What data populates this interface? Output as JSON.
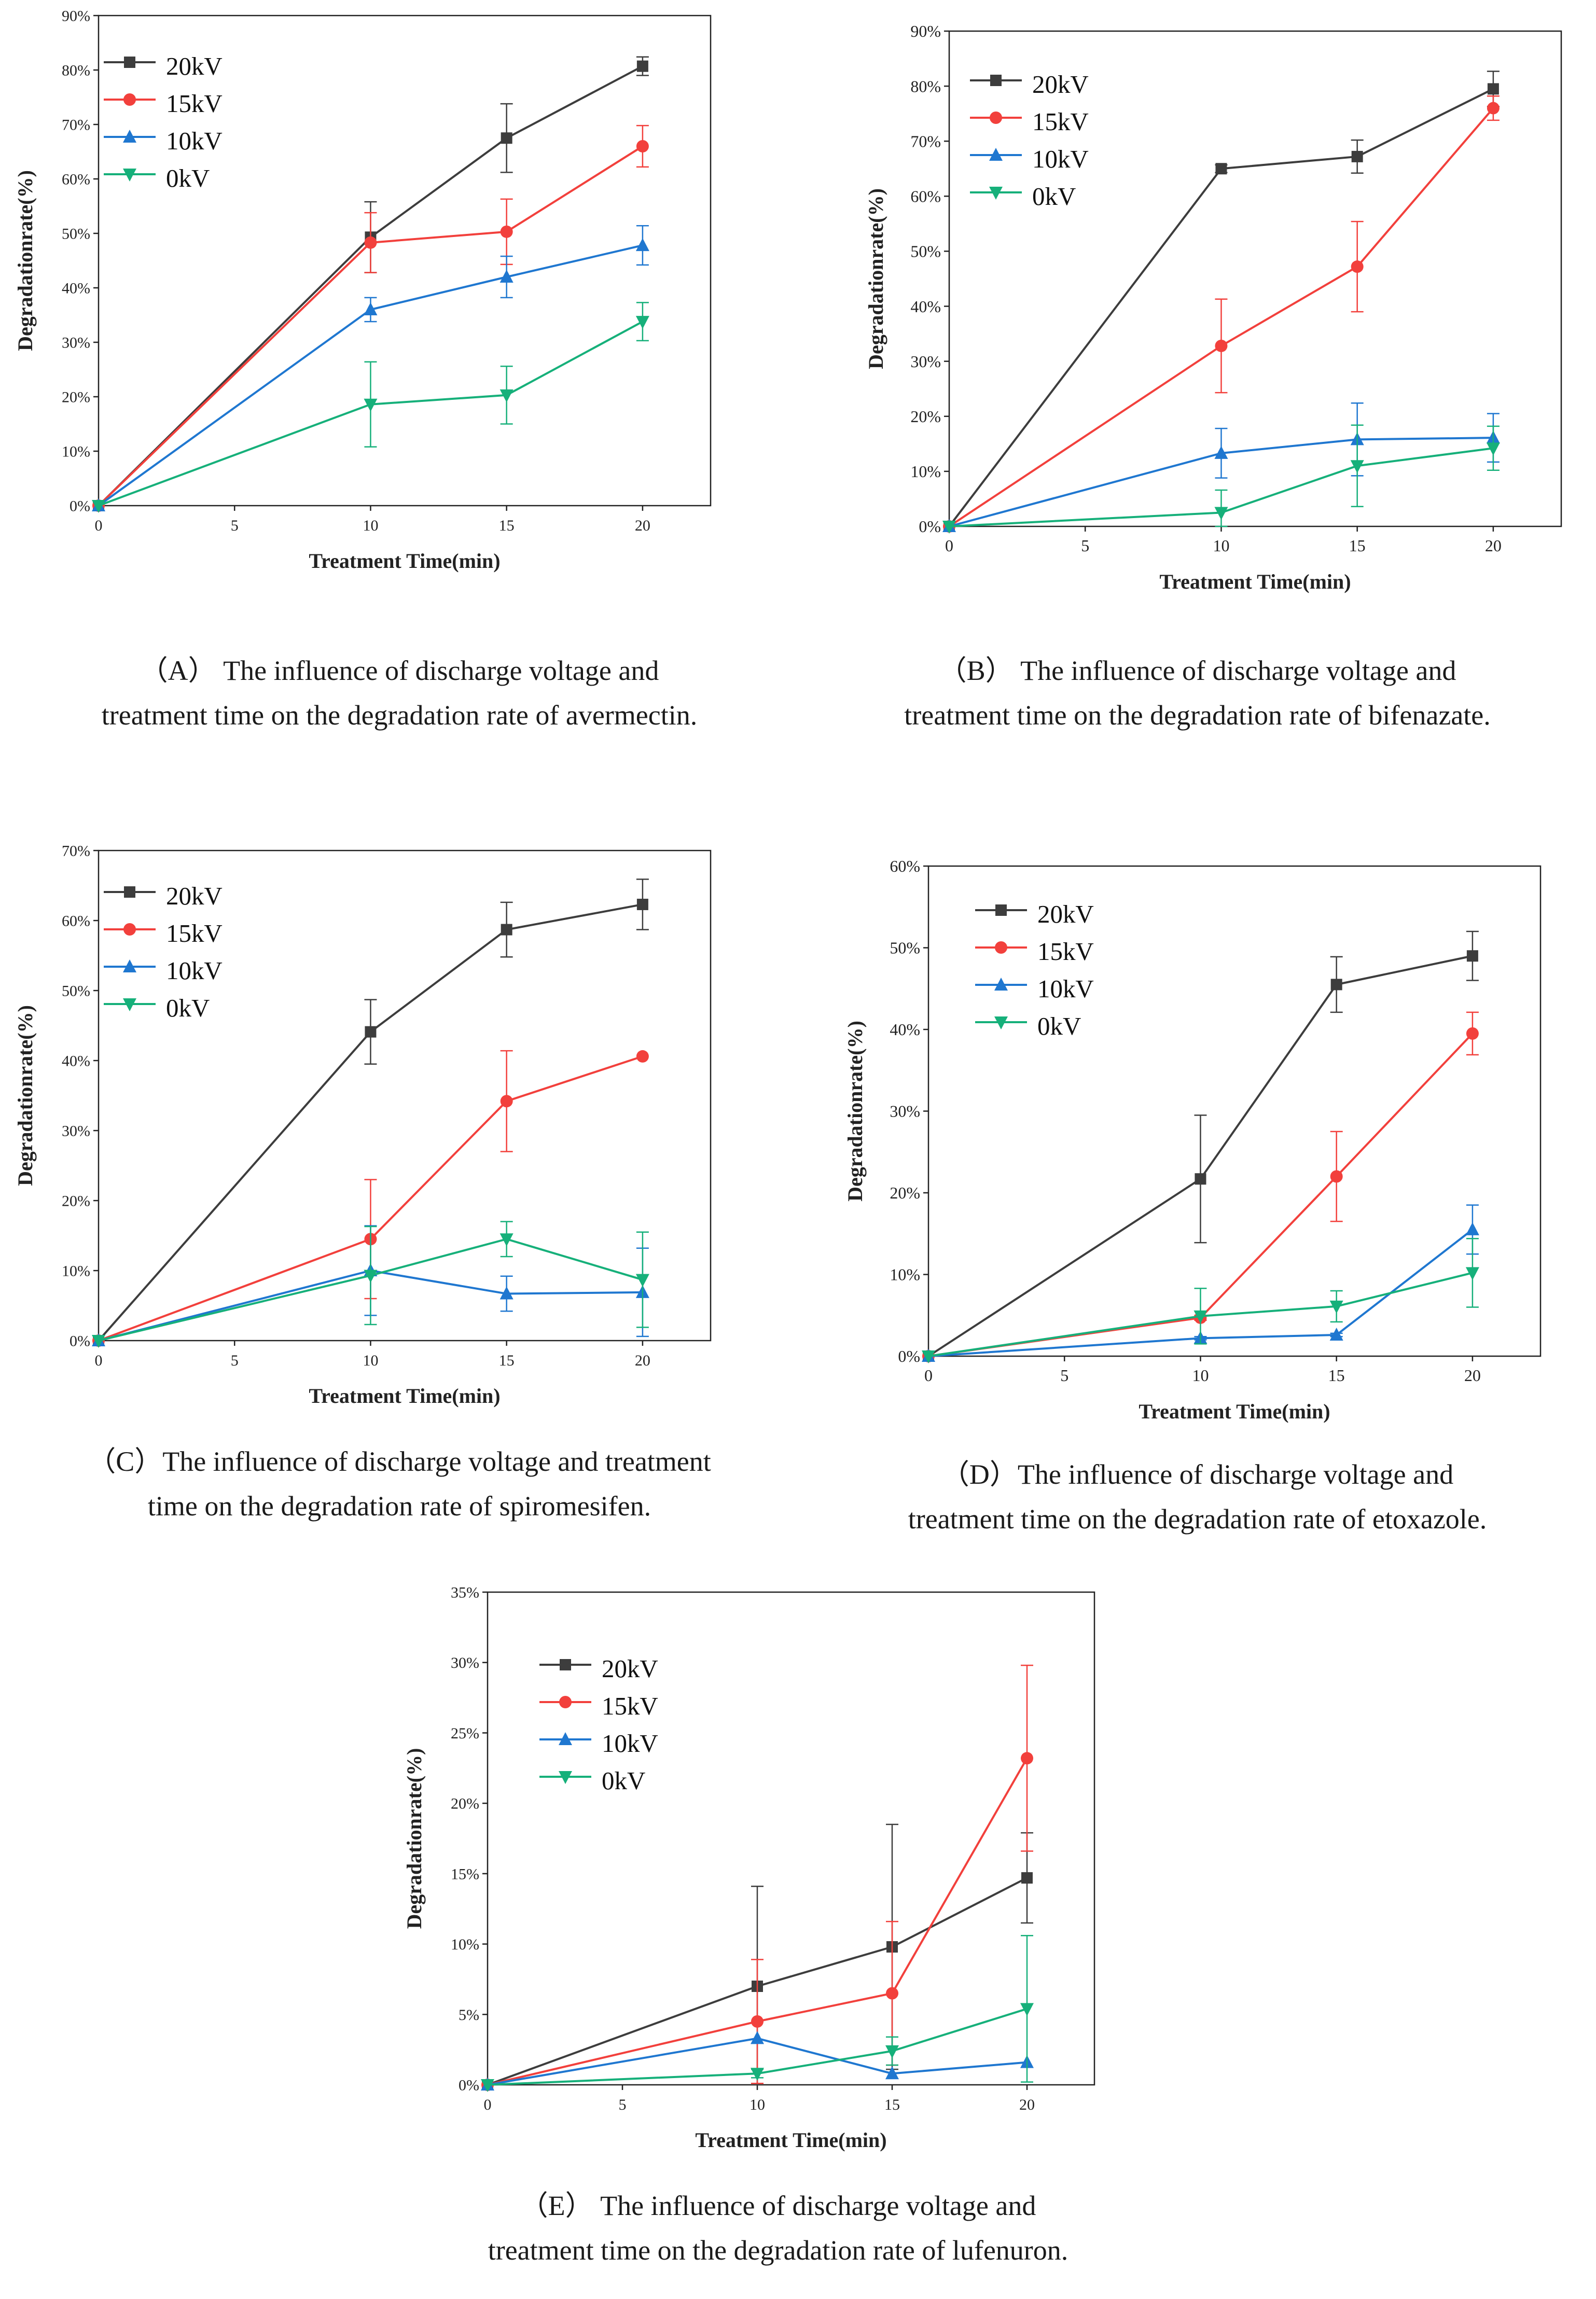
{
  "chart_data": [
    {
      "id": "A",
      "type": "line",
      "xlabel": "Treatment Time(min)",
      "ylabel": "Degradationrate(%)",
      "xlim": [
        0,
        22.5
      ],
      "ylim": [
        0,
        90
      ],
      "xticks": [
        0,
        5,
        10,
        15,
        20
      ],
      "yticks": [
        0,
        10,
        20,
        30,
        40,
        50,
        60,
        70,
        80,
        90
      ],
      "x": [
        0,
        10,
        15,
        20
      ],
      "series": [
        {
          "name": "20kV",
          "color": "#3d3d3d",
          "marker": "square",
          "values": [
            0,
            49.3,
            67.5,
            80.7
          ],
          "errors": [
            0,
            6.5,
            6.3,
            1.7
          ]
        },
        {
          "name": "15kV",
          "color": "#f2403c",
          "marker": "circle",
          "values": [
            0,
            48.3,
            50.3,
            66.0
          ],
          "errors": [
            0,
            5.5,
            6.0,
            3.8
          ]
        },
        {
          "name": "10kV",
          "color": "#1f77d0",
          "marker": "triangle-up",
          "values": [
            0,
            36.0,
            42.0,
            47.8
          ],
          "errors": [
            0,
            2.2,
            3.8,
            3.6
          ]
        },
        {
          "name": "0kV",
          "color": "#16b07a",
          "marker": "triangle-down",
          "values": [
            0,
            18.6,
            20.3,
            33.8
          ],
          "errors": [
            0,
            7.8,
            5.3,
            3.5
          ]
        }
      ],
      "caption_lines": [
        "（A） The influence of discharge voltage and",
        "treatment time on the degradation rate of avermectin."
      ]
    },
    {
      "id": "B",
      "type": "line",
      "xlabel": "Treatment Time(min)",
      "ylabel": "Degradationrate(%)",
      "xlim": [
        0,
        22.5
      ],
      "ylim": [
        0,
        90
      ],
      "xticks": [
        0,
        5,
        10,
        15,
        20
      ],
      "yticks": [
        0,
        10,
        20,
        30,
        40,
        50,
        60,
        70,
        80,
        90
      ],
      "x": [
        0,
        10,
        15,
        20
      ],
      "series": [
        {
          "name": "20kV",
          "color": "#3d3d3d",
          "marker": "square",
          "values": [
            0,
            65.0,
            67.2,
            79.5
          ],
          "errors": [
            0,
            0.7,
            3.0,
            3.2
          ]
        },
        {
          "name": "15kV",
          "color": "#f2403c",
          "marker": "circle",
          "values": [
            0,
            32.8,
            47.2,
            76.0
          ],
          "errors": [
            0,
            8.5,
            8.2,
            2.2
          ]
        },
        {
          "name": "10kV",
          "color": "#1f77d0",
          "marker": "triangle-up",
          "values": [
            0,
            13.3,
            15.8,
            16.1
          ],
          "errors": [
            0,
            4.5,
            6.6,
            4.4
          ]
        },
        {
          "name": "0kV",
          "color": "#16b07a",
          "marker": "triangle-down",
          "values": [
            0,
            2.5,
            11.0,
            14.2
          ],
          "errors": [
            0,
            4.1,
            7.4,
            4.0
          ]
        }
      ],
      "caption_lines": [
        "（B） The influence of discharge voltage and",
        "treatment time on the degradation rate of bifenazate."
      ]
    },
    {
      "id": "C",
      "type": "line",
      "xlabel": "Treatment Time(min)",
      "ylabel": "Degradationrate(%)",
      "xlim": [
        0,
        22.5
      ],
      "ylim": [
        0,
        70
      ],
      "xticks": [
        0,
        5,
        10,
        15,
        20
      ],
      "yticks": [
        0,
        10,
        20,
        30,
        40,
        50,
        60,
        70
      ],
      "x": [
        0,
        10,
        15,
        20
      ],
      "series": [
        {
          "name": "20kV",
          "color": "#3d3d3d",
          "marker": "square",
          "values": [
            0,
            44.1,
            58.7,
            62.3
          ],
          "errors": [
            0,
            4.6,
            3.9,
            3.6
          ]
        },
        {
          "name": "15kV",
          "color": "#f2403c",
          "marker": "circle",
          "values": [
            0,
            14.5,
            34.2,
            40.6
          ],
          "errors": [
            0,
            8.5,
            7.2,
            0
          ]
        },
        {
          "name": "10kV",
          "color": "#1f77d0",
          "marker": "triangle-up",
          "values": [
            0,
            10.0,
            6.7,
            6.9
          ],
          "errors": [
            0,
            6.4,
            2.5,
            6.3
          ]
        },
        {
          "name": "0kV",
          "color": "#16b07a",
          "marker": "triangle-down",
          "values": [
            0,
            9.3,
            14.5,
            8.7
          ],
          "errors": [
            0,
            7.0,
            2.5,
            6.8
          ]
        }
      ],
      "caption_lines": [
        "（C）The influence of discharge voltage and treatment",
        "time on the degradation rate of spiromesifen."
      ]
    },
    {
      "id": "D",
      "type": "line",
      "xlabel": "Treatment Time(min)",
      "ylabel": "Degradationrate(%)",
      "xlim": [
        0,
        22.5
      ],
      "ylim": [
        0,
        60
      ],
      "xticks": [
        0,
        5,
        10,
        15,
        20
      ],
      "yticks": [
        0,
        10,
        20,
        30,
        40,
        50,
        60
      ],
      "x": [
        0,
        10,
        15,
        20
      ],
      "series": [
        {
          "name": "20kV",
          "color": "#3d3d3d",
          "marker": "square",
          "values": [
            0,
            21.7,
            45.5,
            49.0
          ],
          "errors": [
            0,
            7.8,
            3.4,
            3.0
          ]
        },
        {
          "name": "15kV",
          "color": "#f2403c",
          "marker": "circle",
          "values": [
            0,
            4.7,
            22.0,
            39.5
          ],
          "errors": [
            0,
            0.3,
            5.5,
            2.6
          ]
        },
        {
          "name": "10kV",
          "color": "#1f77d0",
          "marker": "triangle-up",
          "values": [
            0,
            2.2,
            2.6,
            15.5
          ],
          "errors": [
            0,
            0.2,
            0.2,
            3.0
          ]
        },
        {
          "name": "0kV",
          "color": "#16b07a",
          "marker": "triangle-down",
          "values": [
            0,
            4.9,
            6.1,
            10.2
          ],
          "errors": [
            0,
            3.4,
            1.9,
            4.2
          ]
        }
      ],
      "caption_lines": [
        "（D）The influence of discharge voltage and",
        "treatment time on the degradation rate of etoxazole."
      ]
    },
    {
      "id": "E",
      "type": "line",
      "xlabel": "Treatment Time(min)",
      "ylabel": "Degradationrate(%)",
      "xlim": [
        0,
        22.5
      ],
      "ylim": [
        0,
        35
      ],
      "xticks": [
        0,
        5,
        10,
        15,
        20
      ],
      "yticks": [
        0,
        5,
        10,
        15,
        20,
        25,
        30,
        35
      ],
      "x": [
        0,
        10,
        15,
        20
      ],
      "series": [
        {
          "name": "20kV",
          "color": "#3d3d3d",
          "marker": "square",
          "values": [
            0,
            7.0,
            9.8,
            14.7
          ],
          "errors": [
            0,
            7.1,
            8.7,
            3.2
          ]
        },
        {
          "name": "15kV",
          "color": "#f2403c",
          "marker": "circle",
          "values": [
            0,
            4.5,
            6.5,
            23.2
          ],
          "errors": [
            0,
            4.4,
            5.1,
            6.6
          ]
        },
        {
          "name": "10kV",
          "color": "#1f77d0",
          "marker": "triangle-up",
          "values": [
            0,
            3.3,
            0.8,
            1.6
          ],
          "errors": [
            0,
            0,
            0,
            0
          ]
        },
        {
          "name": "0kV",
          "color": "#16b07a",
          "marker": "triangle-down",
          "values": [
            0,
            0.8,
            2.4,
            5.4
          ],
          "errors": [
            0,
            0.3,
            1.0,
            5.2
          ]
        }
      ],
      "caption_lines": [
        "（E） The influence of discharge voltage and",
        "treatment time on the degradation rate of lufenuron."
      ]
    }
  ]
}
